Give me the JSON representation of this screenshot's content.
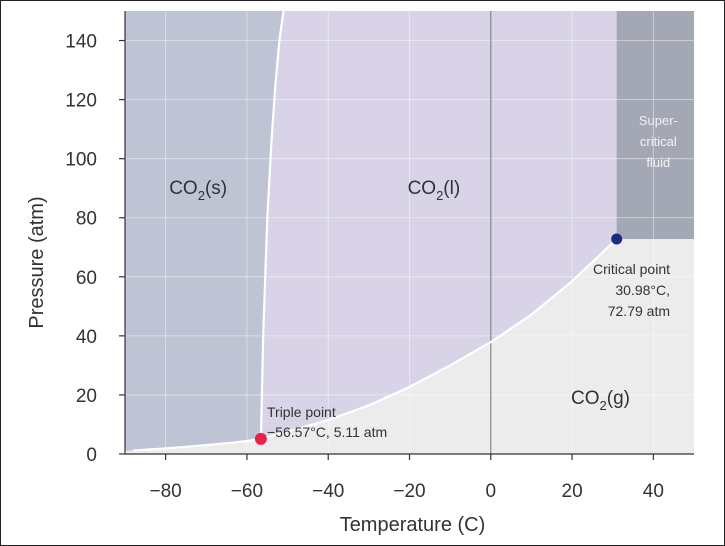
{
  "chart_data": {
    "type": "line",
    "xlabel": "Temperature (C)",
    "ylabel": "Pressure (atm)",
    "xlim": [
      -90,
      50
    ],
    "ylim": [
      0,
      150
    ],
    "x_ticks": [
      -80,
      -60,
      -40,
      -20,
      0,
      20,
      40
    ],
    "x_tick_labels": [
      "−80",
      "−60",
      "−40",
      "−20",
      "0",
      "20",
      "40"
    ],
    "y_ticks": [
      0,
      20,
      40,
      60,
      80,
      100,
      120,
      140
    ],
    "y_tick_labels": [
      "0",
      "20",
      "40",
      "60",
      "80",
      "100",
      "120",
      "140"
    ],
    "grid": true,
    "colors": {
      "solid_region": "#bfc4d4",
      "liquid_region": "#d8d3e6",
      "gas_region": "#ececec",
      "supercritical_region": "#a3a8b4",
      "boundary": "#ffffff",
      "triple_point": "#e8204a",
      "critical_point": "#1c2a80",
      "gridline": "#ffffff",
      "zero_line": "#888888"
    },
    "curves": [
      {
        "id": "sublimation",
        "x": [
          -88,
          -82,
          -76,
          -70,
          -64,
          -60,
          -56.57
        ],
        "y": [
          1.2,
          1.7,
          2.3,
          3.0,
          3.8,
          4.4,
          5.11
        ]
      },
      {
        "id": "vaporization",
        "x": [
          -56.57,
          -50,
          -40,
          -30,
          -20,
          -10,
          0,
          10,
          20,
          30.98
        ],
        "y": [
          5.11,
          7.6,
          11.5,
          16.5,
          22.7,
          30.0,
          37.9,
          47.2,
          58.5,
          72.79
        ]
      },
      {
        "id": "melting",
        "x": [
          -56.57,
          -56,
          -55,
          -54,
          -53,
          -52,
          -51
        ],
        "y": [
          5.11,
          40,
          80,
          105,
          125,
          140,
          150
        ]
      }
    ],
    "regions": [
      {
        "label": "CO",
        "sub": "2",
        "suffix": "(s)",
        "x": -72,
        "y": 88
      },
      {
        "label": "CO",
        "sub": "2",
        "suffix": "(l)",
        "x": -14,
        "y": 88
      },
      {
        "label": "CO",
        "sub": "2",
        "suffix": "(g)",
        "x": 27,
        "y": 17
      }
    ],
    "supercritical": {
      "x_min": 30.98,
      "y_min": 72.79,
      "label_lines": [
        "Super-",
        "critical",
        "fluid"
      ]
    },
    "points": [
      {
        "id": "triple-point",
        "x": -56.57,
        "y": 5.11,
        "label_lines": [
          "Triple point",
          "−56.57°C, 5.11 atm"
        ]
      },
      {
        "id": "critical-point",
        "x": 30.98,
        "y": 72.79,
        "label_lines": [
          "Critical point",
          "30.98°C,",
          "72.79 atm"
        ]
      }
    ]
  }
}
